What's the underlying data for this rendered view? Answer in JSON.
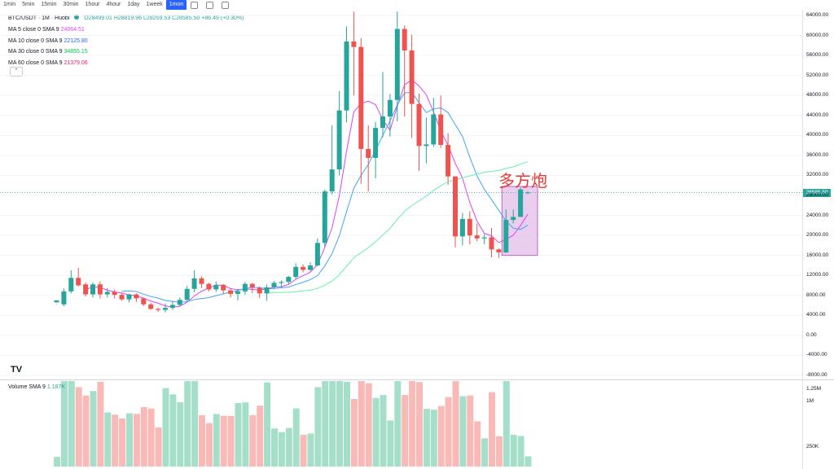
{
  "toolbar": {
    "timeframes": [
      "1min",
      "5min",
      "15min",
      "30min",
      "1hour",
      "4hour",
      "1day",
      "1week",
      "1mon"
    ],
    "active": "1mon"
  },
  "legend": {
    "symbol": "BTC/USDT · 1M · Huobi",
    "ohlc": "O28499.01 H28819.96 L28259.53 C28585.50 +86.49 (+0.30%)",
    "ma": [
      {
        "label": "MA 5 close 0 SMA 9",
        "value": "24064.51",
        "color": "#e040fb"
      },
      {
        "label": "MA 10 close 0 SMA 9",
        "value": "22125.80",
        "color": "#2962ff"
      },
      {
        "label": "MA 30 close 0 SMA 9",
        "value": "34855.15",
        "color": "#00c853"
      },
      {
        "label": "MA 60 close 0 SMA 9",
        "value": "21379.06",
        "color": "#e91e63"
      }
    ]
  },
  "volume_legend": {
    "label": "Volume SMA 9",
    "value": "1.187K"
  },
  "annotation": "多方炮",
  "last_price": "28585.50",
  "colors": {
    "up": "#26a69a",
    "down": "#ef5350",
    "up_vol": "#a5dfc9",
    "down_vol": "#f9b9b7",
    "box": "#e1bee7"
  },
  "chart_data": {
    "type": "candlestick",
    "y_ticks": [
      "64000.00",
      "60000.00",
      "56000.00",
      "52000.00",
      "48000.00",
      "44000.00",
      "40000.00",
      "36000.00",
      "32000.00",
      "28000.00",
      "24000.00",
      "20000.00",
      "16000.00",
      "12000.00",
      "8000.00",
      "4000.00",
      "0.00",
      "-4000.00",
      "-8000.00"
    ],
    "y_range": [
      -8000,
      64000
    ],
    "volume_ticks": [
      "1.25M",
      "1M",
      "250K"
    ],
    "candles": [
      [
        6600,
        7000,
        6300,
        6200
      ],
      [
        6200,
        8800,
        9400,
        5800
      ],
      [
        8800,
        11500,
        13000,
        8400
      ],
      [
        11500,
        10000,
        13500,
        9800
      ],
      [
        10200,
        8200,
        10600,
        7800
      ],
      [
        8200,
        10200,
        10600,
        7600
      ],
      [
        10200,
        8200,
        10800,
        7400
      ],
      [
        8200,
        8700,
        9500,
        7600
      ],
      [
        8700,
        8100,
        9200,
        7400
      ],
      [
        8100,
        7200,
        8400,
        6900
      ],
      [
        7200,
        8200,
        8300,
        6600
      ],
      [
        8200,
        7400,
        8400,
        6700
      ],
      [
        7400,
        6200,
        7600,
        5900
      ],
      [
        6200,
        5300,
        6500,
        5100
      ],
      [
        5300,
        5100,
        5500,
        4700
      ],
      [
        5100,
        5500,
        6400,
        4600
      ],
      [
        5500,
        6100,
        6900,
        5100
      ],
      [
        6100,
        7100,
        7600,
        5800
      ],
      [
        7100,
        9300,
        9900,
        6800
      ],
      [
        9300,
        11400,
        13000,
        8600
      ],
      [
        11400,
        10300,
        11800,
        9500
      ],
      [
        10300,
        9200,
        10500,
        8800
      ],
      [
        9200,
        10100,
        10800,
        8700
      ],
      [
        10100,
        9000,
        10300,
        8300
      ],
      [
        9000,
        8300,
        9400,
        7600
      ],
      [
        8300,
        8800,
        9300,
        7000
      ],
      [
        8800,
        10300,
        10700,
        8100
      ],
      [
        10300,
        9500,
        10500,
        8400
      ],
      [
        9500,
        8400,
        9800,
        7500
      ],
      [
        8400,
        9600,
        10200,
        6900
      ],
      [
        9600,
        10500,
        10900,
        9400
      ],
      [
        10500,
        10700,
        11000,
        9600
      ],
      [
        10700,
        11700,
        11900,
        10200
      ],
      [
        11700,
        13700,
        14400,
        11300
      ],
      [
        13700,
        13100,
        14200,
        12600
      ],
      [
        13100,
        14000,
        14600,
        12900
      ],
      [
        14000,
        18500,
        19400,
        13800
      ],
      [
        18500,
        28800,
        29200,
        17600
      ],
      [
        28800,
        33200,
        42000,
        28200
      ],
      [
        33200,
        45000,
        48900,
        32000
      ],
      [
        45000,
        58800,
        61800,
        42600
      ],
      [
        58800,
        57700,
        64800,
        48000
      ],
      [
        57700,
        37300,
        59500,
        30300
      ],
      [
        37300,
        35500,
        42000,
        28800
      ],
      [
        35500,
        41500,
        42700,
        31400
      ],
      [
        41500,
        43800,
        52700,
        39600
      ],
      [
        43800,
        47100,
        48300,
        39800
      ],
      [
        47100,
        61300,
        64800,
        42800
      ],
      [
        61300,
        57000,
        62000,
        43800
      ],
      [
        57000,
        46300,
        60100,
        39500
      ],
      [
        46300,
        37900,
        48400,
        32900
      ],
      [
        37900,
        38200,
        43600,
        34400
      ],
      [
        38200,
        44200,
        47500,
        37700
      ],
      [
        44200,
        38100,
        48000,
        37500
      ],
      [
        38100,
        31800,
        40500,
        30100
      ],
      [
        31800,
        19800,
        31800,
        17600
      ],
      [
        19800,
        23300,
        24500,
        18000
      ],
      [
        23300,
        20000,
        24800,
        18200
      ],
      [
        20000,
        19400,
        22400,
        18800
      ],
      [
        19400,
        19600,
        20200,
        18200
      ],
      [
        19600,
        17200,
        21500,
        15600
      ],
      [
        17200,
        16600,
        17400,
        15500
      ],
      [
        16600,
        23100,
        25200,
        16500
      ],
      [
        23100,
        23700,
        25200,
        22400
      ],
      [
        23700,
        29200,
        29600,
        26600
      ],
      [
        28500,
        28600,
        28800,
        28300
      ]
    ]
  }
}
